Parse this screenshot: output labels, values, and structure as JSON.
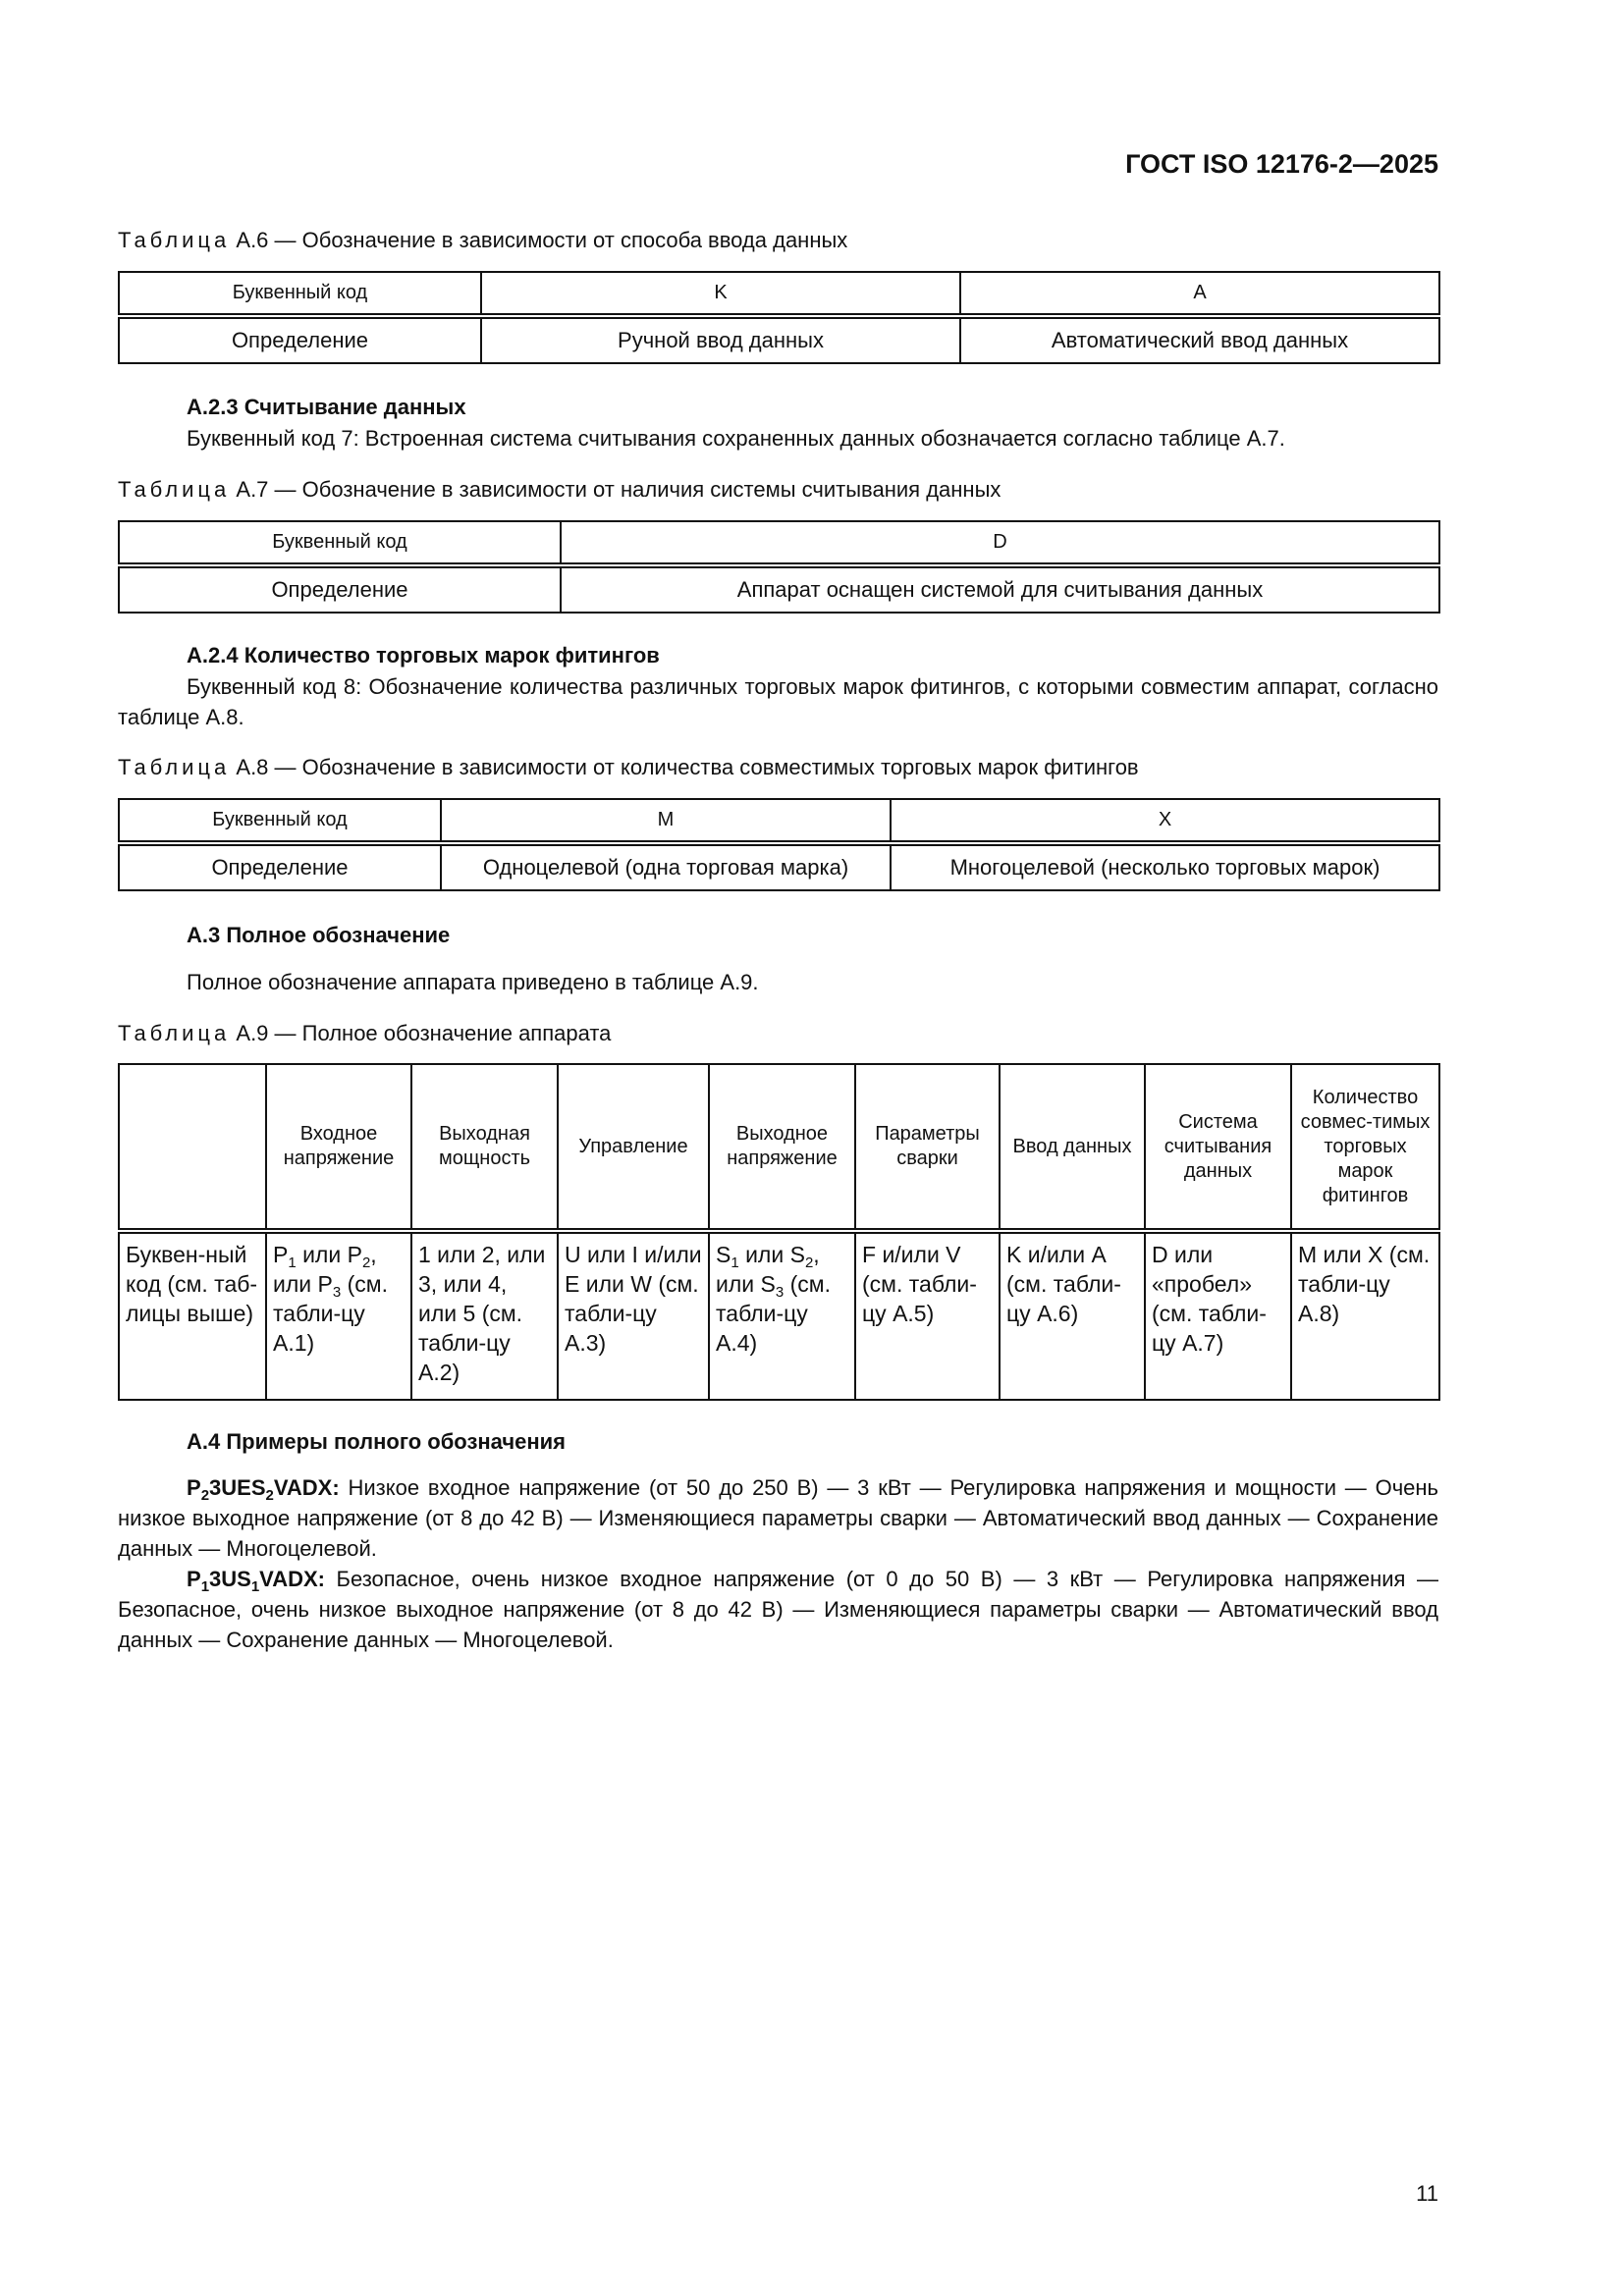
{
  "header": {
    "doc_id": "ГОСТ ISO 12176-2—2025"
  },
  "table_a6": {
    "caption_prefix": "Таблица",
    "caption": "А.6 — Обозначение в зависимости от способа ввода данных",
    "row1": [
      "Буквенный код",
      "K",
      "A"
    ],
    "row2": [
      "Определение",
      "Ручной ввод данных",
      "Автоматический ввод данных"
    ]
  },
  "sec_a23": {
    "heading": "А.2.3 Считывание данных",
    "text": "Буквенный код 7: Встроенная система считывания сохраненных данных обозначается согласно таблице А.7."
  },
  "table_a7": {
    "caption_prefix": "Таблица",
    "caption": "А.7 — Обозначение в зависимости от наличия системы считывания данных",
    "row1": [
      "Буквенный код",
      "D"
    ],
    "row2": [
      "Определение",
      "Аппарат оснащен системой для считывания данных"
    ]
  },
  "sec_a24": {
    "heading": "А.2.4 Количество торговых марок фитингов",
    "text": "Буквенный код 8: Обозначение количества различных торговых марок фитингов, с которыми совместим аппарат, согласно таблице А.8."
  },
  "table_a8": {
    "caption_prefix": "Таблица",
    "caption": "А.8 — Обозначение в зависимости от количества совместимых торговых марок фитингов",
    "row1": [
      "Буквенный код",
      "M",
      "X"
    ],
    "row2": [
      "Определение",
      "Одноцелевой (одна торговая марка)",
      "Многоцелевой (несколько торговых марок)"
    ]
  },
  "sec_a3": {
    "heading": "А.3 Полное обозначение",
    "text": "Полное обозначение аппарата приведено в таблице А.9."
  },
  "table_a9": {
    "caption_prefix": "Таблица",
    "caption": "А.9 — Полное обозначение аппарата",
    "headers": [
      "",
      "Входное напряжение",
      "Выходная мощность",
      "Управление",
      "Выходное напряжение",
      "Параметры сварки",
      "Ввод данных",
      "Система считывания данных",
      "Количество совмес-тимых торговых марок фитингов"
    ],
    "row": {
      "c0": "Буквен-ный код (см. таб-лицы выше)",
      "c1": {
        "a": "P",
        "a_sub": "1",
        "b": " или P",
        "b_sub": "2",
        "c": ", или P",
        "c_sub": "3",
        "d": " (см. табли-цу А.1)"
      },
      "c2": "1 или 2, или 3, или 4, или 5 (см. табли-цу А.2)",
      "c3": "U или I и/или E или W (см. табли-цу А.3)",
      "c4": {
        "a": "S",
        "a_sub": "1",
        "b": " или S",
        "b_sub": "2",
        "c": ", или S",
        "c_sub": "3",
        "d": " (см. табли-цу А.4)"
      },
      "c5": "F и/или V (см. табли-цу А.5)",
      "c6": "K и/или A (см. табли-цу А.6)",
      "c7": "D или «пробел» (см. табли-цу А.7)",
      "c8": "M или X (см. табли-цу А.8)"
    }
  },
  "sec_a4": {
    "heading": "А.4 Примеры полного обозначения",
    "ex1": {
      "c1": "P",
      "s1": "2",
      "c2": "3UES",
      "s2": "2",
      "c3": "VADX:",
      "text": " Низкое входное напряжение (от 50 до 250 В) — 3 кВт — Регулировка напряжения и мощности — Очень низкое выходное напряжение (от 8 до 42 В) — Изменяющиеся параметры сварки — Автоматический ввод данных — Сохранение данных — Многоцелевой."
    },
    "ex2": {
      "c1": "P",
      "s1": "1",
      "c2": "3US",
      "s2": "1",
      "c3": "VADX:",
      "text": " Безопасное, очень низкое входное напряжение (от 0 до 50 В) — 3 кВт — Регулировка напряжения — Безопасное, очень низкое выходное напряжение (от 8 до 42 В) — Изменяющиеся параметры сварки — Автоматический ввод данных — Сохранение данных — Многоцелевой."
    }
  },
  "page_number": "11"
}
